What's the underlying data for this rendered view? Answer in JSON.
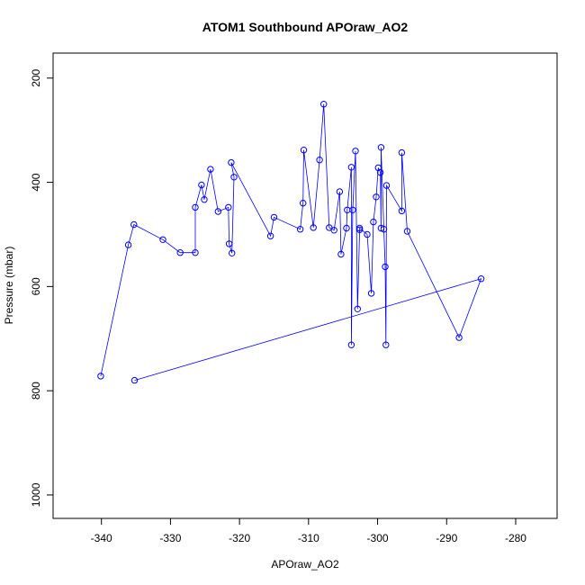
{
  "chart_data": {
    "type": "scatter",
    "title": "ATOM1 Southbound APOraw_AO2",
    "xlabel": "APOraw_AO2",
    "ylabel": "Pressure (mbar)",
    "xlim": [
      -347,
      -274
    ],
    "ylim": [
      1045,
      152
    ],
    "y_reversed": true,
    "x_ticks": [
      -340,
      -330,
      -320,
      -310,
      -300,
      -290,
      -280
    ],
    "y_ticks": [
      200,
      400,
      600,
      800,
      1000
    ],
    "grid": false,
    "legend": "none",
    "line_color": "#0000ff",
    "marker": "open-circle",
    "series": [
      {
        "points": [
          [
            -340.1,
            772
          ],
          [
            -336.1,
            520
          ],
          [
            -335.3,
            481
          ],
          [
            -331.1,
            510
          ],
          [
            -328.6,
            535
          ],
          [
            -326.4,
            535
          ],
          [
            -326.4,
            448
          ],
          [
            -325.5,
            405
          ],
          [
            -325.1,
            433
          ],
          [
            -324.2,
            375
          ],
          [
            -323.1,
            456
          ],
          [
            -321.6,
            448
          ],
          [
            -321.5,
            518
          ],
          [
            -321.1,
            536
          ],
          [
            -320.8,
            390
          ],
          [
            -321.2,
            362
          ],
          [
            -315.5,
            503
          ],
          [
            -315.0,
            467
          ],
          [
            -311.2,
            490
          ],
          [
            -310.8,
            440
          ],
          [
            -310.7,
            338
          ],
          [
            -309.3,
            487
          ],
          [
            -308.4,
            357
          ],
          [
            -307.8,
            250
          ],
          [
            -307.0,
            487
          ],
          [
            -306.3,
            492
          ],
          [
            -305.5,
            418
          ],
          [
            -305.3,
            538
          ],
          [
            -304.5,
            488
          ],
          [
            -304.4,
            453
          ],
          [
            -303.8,
            371
          ],
          [
            -303.8,
            712
          ],
          [
            -303.6,
            453
          ],
          [
            -303.2,
            340
          ],
          [
            -302.9,
            643
          ],
          [
            -302.6,
            491
          ],
          [
            -302.6,
            488
          ],
          [
            -301.5,
            500
          ],
          [
            -300.9,
            613
          ],
          [
            -300.6,
            476
          ],
          [
            -300.2,
            428
          ],
          [
            -299.9,
            372
          ],
          [
            -299.6,
            381
          ],
          [
            -299.5,
            488
          ],
          [
            -299.5,
            333
          ],
          [
            -299.1,
            490
          ],
          [
            -298.9,
            562
          ],
          [
            -298.8,
            712
          ],
          [
            -298.7,
            406
          ],
          [
            -296.5,
            455
          ],
          [
            -296.5,
            343
          ],
          [
            -295.7,
            494
          ],
          [
            -288.2,
            698
          ],
          [
            -285.0,
            585
          ],
          [
            -335.2,
            780
          ]
        ]
      }
    ]
  }
}
